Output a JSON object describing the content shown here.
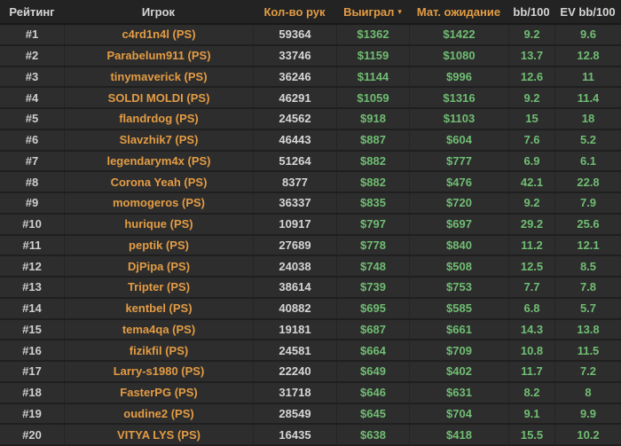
{
  "colors": {
    "bg-header": "#232323",
    "bg-row": "#2d2d2d",
    "border-dark": "#181818",
    "border-dark2": "#1f1f1f",
    "border-col": "#242424",
    "text-white": "#d6d6d6",
    "rank-gray": "#cfcfcf",
    "accent-orange": "#e39c44",
    "accent-green": "#70bd73"
  },
  "table": {
    "sort_indicator": "▾",
    "sorted_by": "Выиграл",
    "columns": [
      {
        "key": "rank",
        "label": "Рейтинг"
      },
      {
        "key": "player",
        "label": "Игрок"
      },
      {
        "key": "hands",
        "label": "Кол-во рук"
      },
      {
        "key": "won",
        "label": "Выиграл"
      },
      {
        "key": "ev",
        "label": "Мат. ожидание"
      },
      {
        "key": "bb100",
        "label": "bb/100"
      },
      {
        "key": "evbb100",
        "label": "EV bb/100"
      }
    ],
    "rows": [
      {
        "rank": "#1",
        "player": "c4rd1n4l (PS)",
        "hands": "59364",
        "won": "$1362",
        "ev": "$1422",
        "bb100": "9.2",
        "evbb100": "9.6"
      },
      {
        "rank": "#2",
        "player": "Parabelum911 (PS)",
        "hands": "33746",
        "won": "$1159",
        "ev": "$1080",
        "bb100": "13.7",
        "evbb100": "12.8"
      },
      {
        "rank": "#3",
        "player": "tinymaverick (PS)",
        "hands": "36246",
        "won": "$1144",
        "ev": "$996",
        "bb100": "12.6",
        "evbb100": "11"
      },
      {
        "rank": "#4",
        "player": "SOLDI MOLDI (PS)",
        "hands": "46291",
        "won": "$1059",
        "ev": "$1316",
        "bb100": "9.2",
        "evbb100": "11.4"
      },
      {
        "rank": "#5",
        "player": "flandrdog (PS)",
        "hands": "24562",
        "won": "$918",
        "ev": "$1103",
        "bb100": "15",
        "evbb100": "18"
      },
      {
        "rank": "#6",
        "player": "Slavzhik7 (PS)",
        "hands": "46443",
        "won": "$887",
        "ev": "$604",
        "bb100": "7.6",
        "evbb100": "5.2"
      },
      {
        "rank": "#7",
        "player": "legendarym4x (PS)",
        "hands": "51264",
        "won": "$882",
        "ev": "$777",
        "bb100": "6.9",
        "evbb100": "6.1"
      },
      {
        "rank": "#8",
        "player": "Corona Yeah (PS)",
        "hands": "8377",
        "won": "$882",
        "ev": "$476",
        "bb100": "42.1",
        "evbb100": "22.8"
      },
      {
        "rank": "#9",
        "player": "momogeros (PS)",
        "hands": "36337",
        "won": "$835",
        "ev": "$720",
        "bb100": "9.2",
        "evbb100": "7.9"
      },
      {
        "rank": "#10",
        "player": "hurique (PS)",
        "hands": "10917",
        "won": "$797",
        "ev": "$697",
        "bb100": "29.2",
        "evbb100": "25.6"
      },
      {
        "rank": "#11",
        "player": "peptik (PS)",
        "hands": "27689",
        "won": "$778",
        "ev": "$840",
        "bb100": "11.2",
        "evbb100": "12.1"
      },
      {
        "rank": "#12",
        "player": "DjPipa (PS)",
        "hands": "24038",
        "won": "$748",
        "ev": "$508",
        "bb100": "12.5",
        "evbb100": "8.5"
      },
      {
        "rank": "#13",
        "player": "Tripter (PS)",
        "hands": "38614",
        "won": "$739",
        "ev": "$753",
        "bb100": "7.7",
        "evbb100": "7.8"
      },
      {
        "rank": "#14",
        "player": "kentbel (PS)",
        "hands": "40882",
        "won": "$695",
        "ev": "$585",
        "bb100": "6.8",
        "evbb100": "5.7"
      },
      {
        "rank": "#15",
        "player": "tema4qa (PS)",
        "hands": "19181",
        "won": "$687",
        "ev": "$661",
        "bb100": "14.3",
        "evbb100": "13.8"
      },
      {
        "rank": "#16",
        "player": "fizikfil (PS)",
        "hands": "24581",
        "won": "$664",
        "ev": "$709",
        "bb100": "10.8",
        "evbb100": "11.5"
      },
      {
        "rank": "#17",
        "player": "Larry-s1980 (PS)",
        "hands": "22240",
        "won": "$649",
        "ev": "$402",
        "bb100": "11.7",
        "evbb100": "7.2"
      },
      {
        "rank": "#18",
        "player": "FasterPG (PS)",
        "hands": "31718",
        "won": "$646",
        "ev": "$631",
        "bb100": "8.2",
        "evbb100": "8"
      },
      {
        "rank": "#19",
        "player": "oudine2 (PS)",
        "hands": "28549",
        "won": "$645",
        "ev": "$704",
        "bb100": "9.1",
        "evbb100": "9.9"
      },
      {
        "rank": "#20",
        "player": "VITYA LYS (PS)",
        "hands": "16435",
        "won": "$638",
        "ev": "$418",
        "bb100": "15.5",
        "evbb100": "10.2"
      }
    ]
  }
}
